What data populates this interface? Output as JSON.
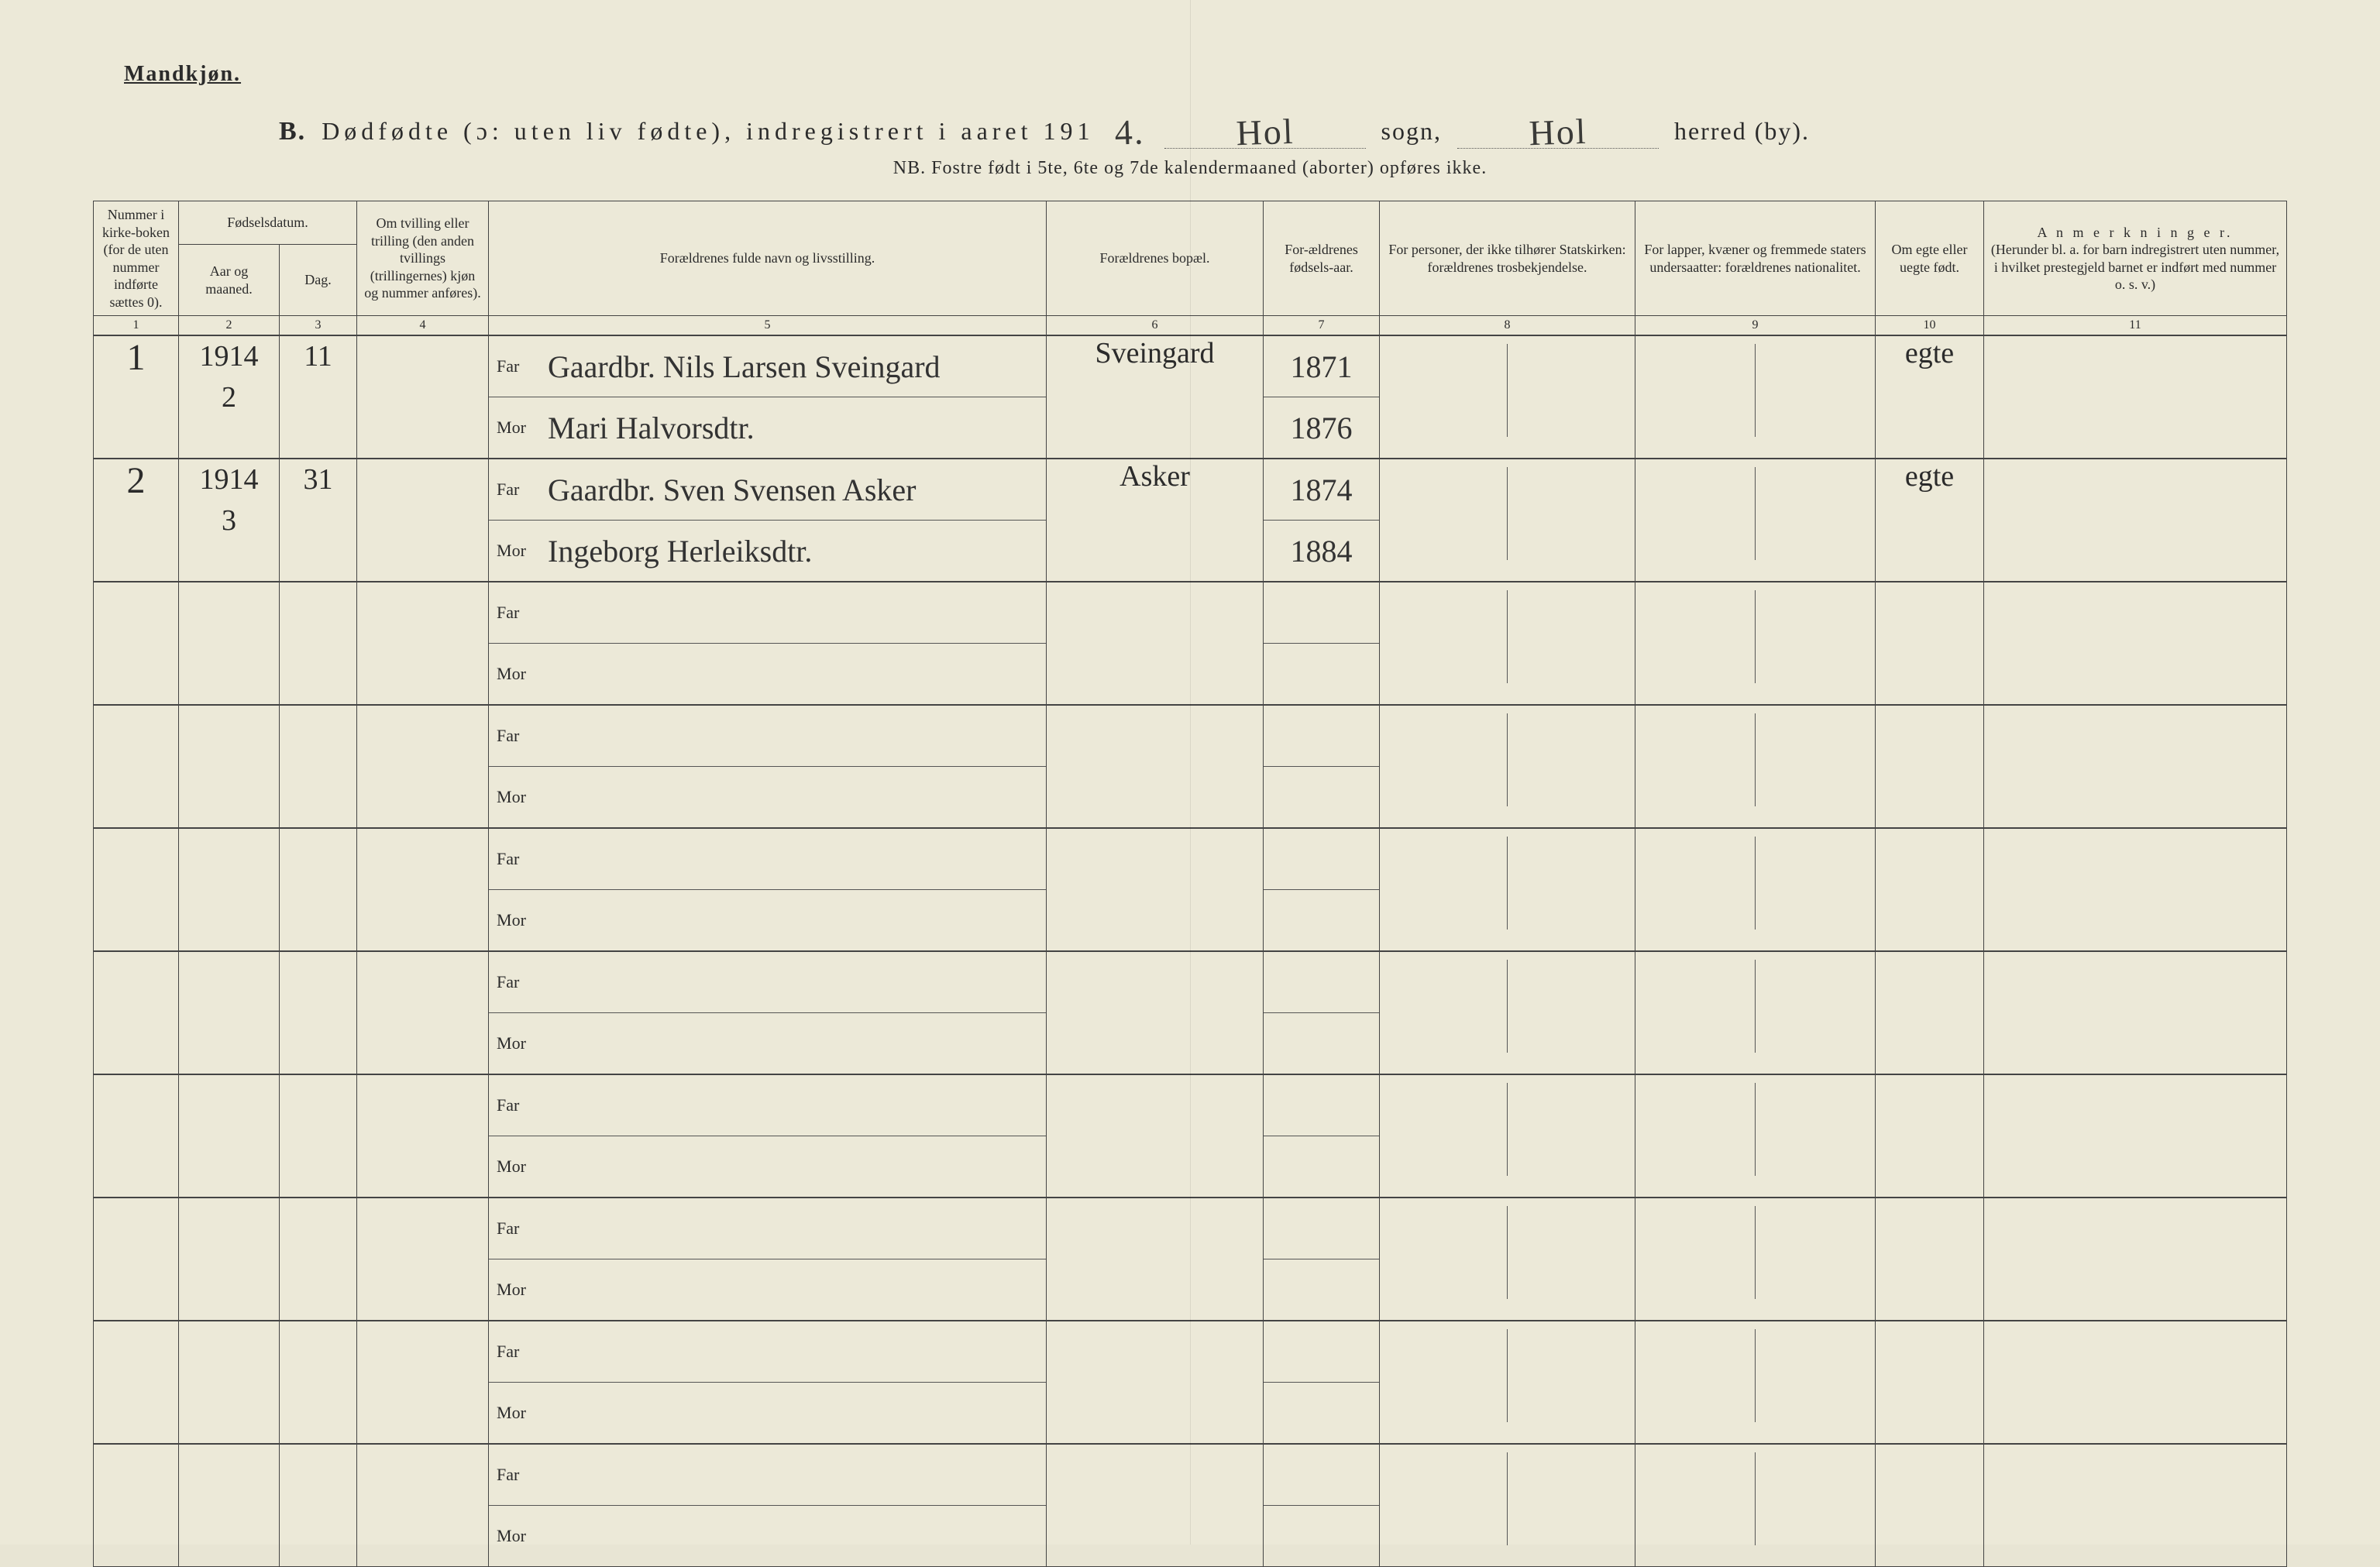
{
  "header": {
    "gender": "Mandkjøn.",
    "section_letter": "B.",
    "title_main": "Dødfødte (ɔ: uten liv fødte), indregistrert i aaret 191",
    "year_suffix": "4.",
    "sogn_label": "sogn,",
    "herred_label": "herred (by).",
    "sogn_value": "Hol",
    "herred_value": "Hol",
    "nb": "NB.  Fostre født i 5te, 6te og 7de kalendermaaned (aborter) opføres ikke."
  },
  "columns": {
    "c1": "Nummer i kirke-boken (for de uten nummer indførte sættes 0).",
    "c2_group": "Fødselsdatum.",
    "c2a": "Aar og maaned.",
    "c2b": "Dag.",
    "c4": "Om tvilling eller trilling (den anden tvillings (trillingernes) kjøn og nummer anføres).",
    "c5": "Forældrenes fulde navn og livsstilling.",
    "c6": "Forældrenes bopæl.",
    "c7": "For-ældrenes fødsels-aar.",
    "c8": "For personer, der ikke tilhører Statskirken: forældrenes trosbekjendelse.",
    "c9": "For lapper, kvæner og fremmede staters undersaatter: forældrenes nationalitet.",
    "c10": "Om egte eller uegte født.",
    "c11_title": "A n m e r k n i n g e r.",
    "c11_sub": "(Herunder bl. a. for barn indregistrert uten nummer, i hvilket prestegjeld barnet er indført med nummer o. s. v.)",
    "nums": [
      "1",
      "2",
      "3",
      "4",
      "5",
      "6",
      "7",
      "8",
      "9",
      "10",
      "11"
    ],
    "far": "Far",
    "mor": "Mor"
  },
  "style": {
    "bg": "#ece9d8",
    "line": "#444444",
    "ink": "#2b2b2b",
    "hand_ink": "#3a3a38",
    "header_fontsize": 28,
    "title_fontsize": 32,
    "nb_fontsize": 24,
    "cell_fontsize": 20,
    "hand_fontsize": 40
  },
  "rows": [
    {
      "num": "1",
      "year_month": "1914\n2",
      "day": "11",
      "twin": "",
      "far": "Gaardbr. Nils Larsen Sveingard",
      "mor": "Mari Halvorsdtr.",
      "bopael": "Sveingard",
      "far_year": "1871",
      "mor_year": "1876",
      "tros": "",
      "nat": "",
      "egte": "egte",
      "anm": ""
    },
    {
      "num": "2",
      "year_month": "1914\n3",
      "day": "31",
      "twin": "",
      "far": "Gaardbr. Sven Svensen Asker",
      "mor": "Ingeborg Herleiksdtr.",
      "bopael": "Asker",
      "far_year": "1874",
      "mor_year": "1884",
      "tros": "",
      "nat": "",
      "egte": "egte",
      "anm": ""
    },
    {
      "num": "",
      "far": "",
      "mor": ""
    },
    {
      "num": "",
      "far": "",
      "mor": ""
    },
    {
      "num": "",
      "far": "",
      "mor": ""
    },
    {
      "num": "",
      "far": "",
      "mor": ""
    },
    {
      "num": "",
      "far": "",
      "mor": ""
    },
    {
      "num": "",
      "far": "",
      "mor": ""
    },
    {
      "num": "",
      "far": "",
      "mor": ""
    },
    {
      "num": "",
      "far": "",
      "mor": ""
    }
  ]
}
